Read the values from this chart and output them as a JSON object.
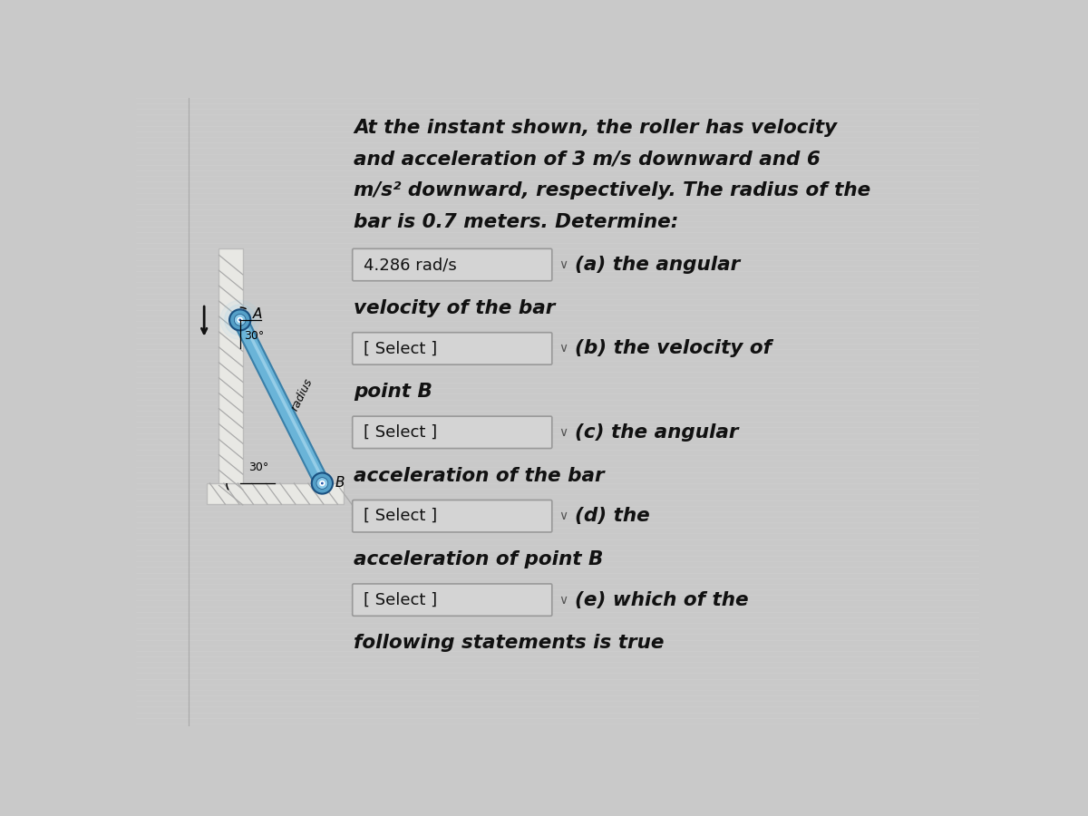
{
  "bg_color": "#c9c9c9",
  "title_lines": [
    "At the instant shown, the roller has velocity",
    "and acceleration of 3 m/s downward and 6",
    "m/s² downward, respectively. The radius of the",
    "bar is 0.7 meters. Determine:"
  ],
  "rows": [
    {
      "answer": "4.286 rad/s",
      "label_right": "(a) the angular",
      "label_below": "velocity of the bar"
    },
    {
      "answer": "[ Select ]",
      "label_right": "(b) the velocity of",
      "label_below": "point B"
    },
    {
      "answer": "[ Select ]",
      "label_right": "(c) the angular",
      "label_below": "acceleration of the bar"
    },
    {
      "answer": "[ Select ]",
      "label_right": "(d) the",
      "label_below": "acceleration of point B"
    },
    {
      "answer": "[ Select ]",
      "label_right": "(e) which of the",
      "label_below": "following statements is true"
    }
  ],
  "box_color": "#d4d4d4",
  "box_edge": "#999999",
  "wall_color": "#e8e8e4",
  "hatch_color": "#aaaaaa",
  "bar_color": "#6ab4d8",
  "bar_shadow": "#3a7fa8",
  "bar_highlight": "#a8d8ee",
  "roller_color": "#55a0c8",
  "roller_edge": "#1a5080",
  "text_color": "#111111",
  "arrow_color": "#111111",
  "vertical_line_color": "#888888"
}
